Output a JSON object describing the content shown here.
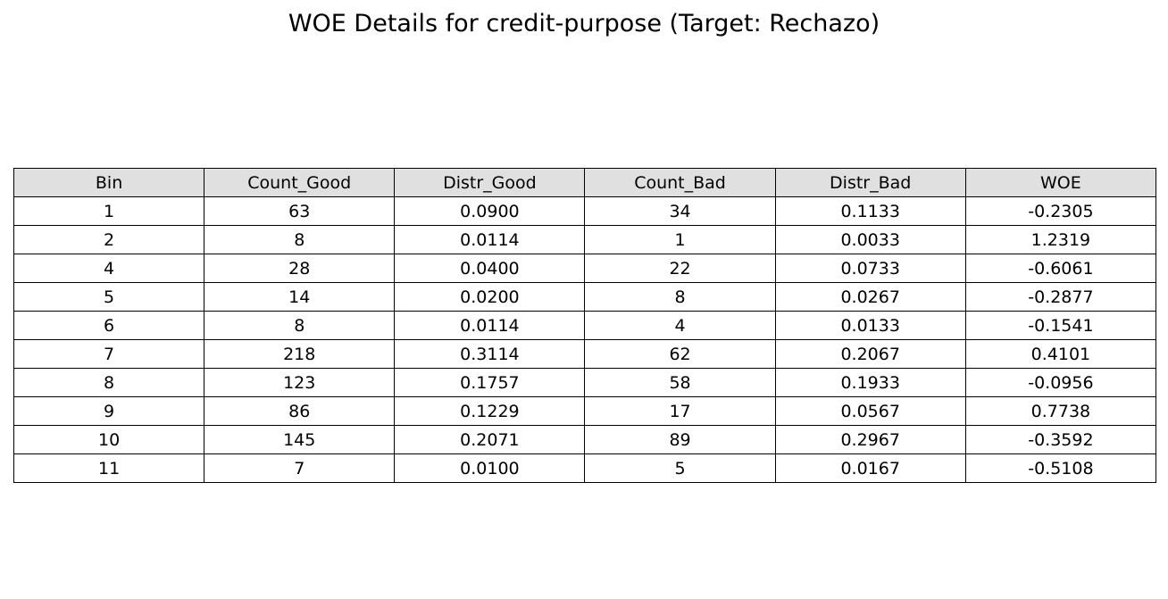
{
  "chart_data": {
    "type": "table",
    "title": "WOE Details for credit-purpose (Target: Rechazo)",
    "columns": [
      "Bin",
      "Count_Good",
      "Distr_Good",
      "Count_Bad",
      "Distr_Bad",
      "WOE"
    ],
    "rows": [
      [
        "1",
        "63",
        "0.0900",
        "34",
        "0.1133",
        "-0.2305"
      ],
      [
        "2",
        "8",
        "0.0114",
        "1",
        "0.0033",
        "1.2319"
      ],
      [
        "4",
        "28",
        "0.0400",
        "22",
        "0.0733",
        "-0.6061"
      ],
      [
        "5",
        "14",
        "0.0200",
        "8",
        "0.0267",
        "-0.2877"
      ],
      [
        "6",
        "8",
        "0.0114",
        "4",
        "0.0133",
        "-0.1541"
      ],
      [
        "7",
        "218",
        "0.3114",
        "62",
        "0.2067",
        "0.4101"
      ],
      [
        "8",
        "123",
        "0.1757",
        "58",
        "0.1933",
        "-0.0956"
      ],
      [
        "9",
        "86",
        "0.1229",
        "17",
        "0.0567",
        "0.7738"
      ],
      [
        "10",
        "145",
        "0.2071",
        "89",
        "0.2967",
        "-0.3592"
      ],
      [
        "11",
        "7",
        "0.0100",
        "5",
        "0.0167",
        "-0.5108"
      ]
    ],
    "header_color": "#e0e0e0",
    "border_color": "#000000"
  }
}
